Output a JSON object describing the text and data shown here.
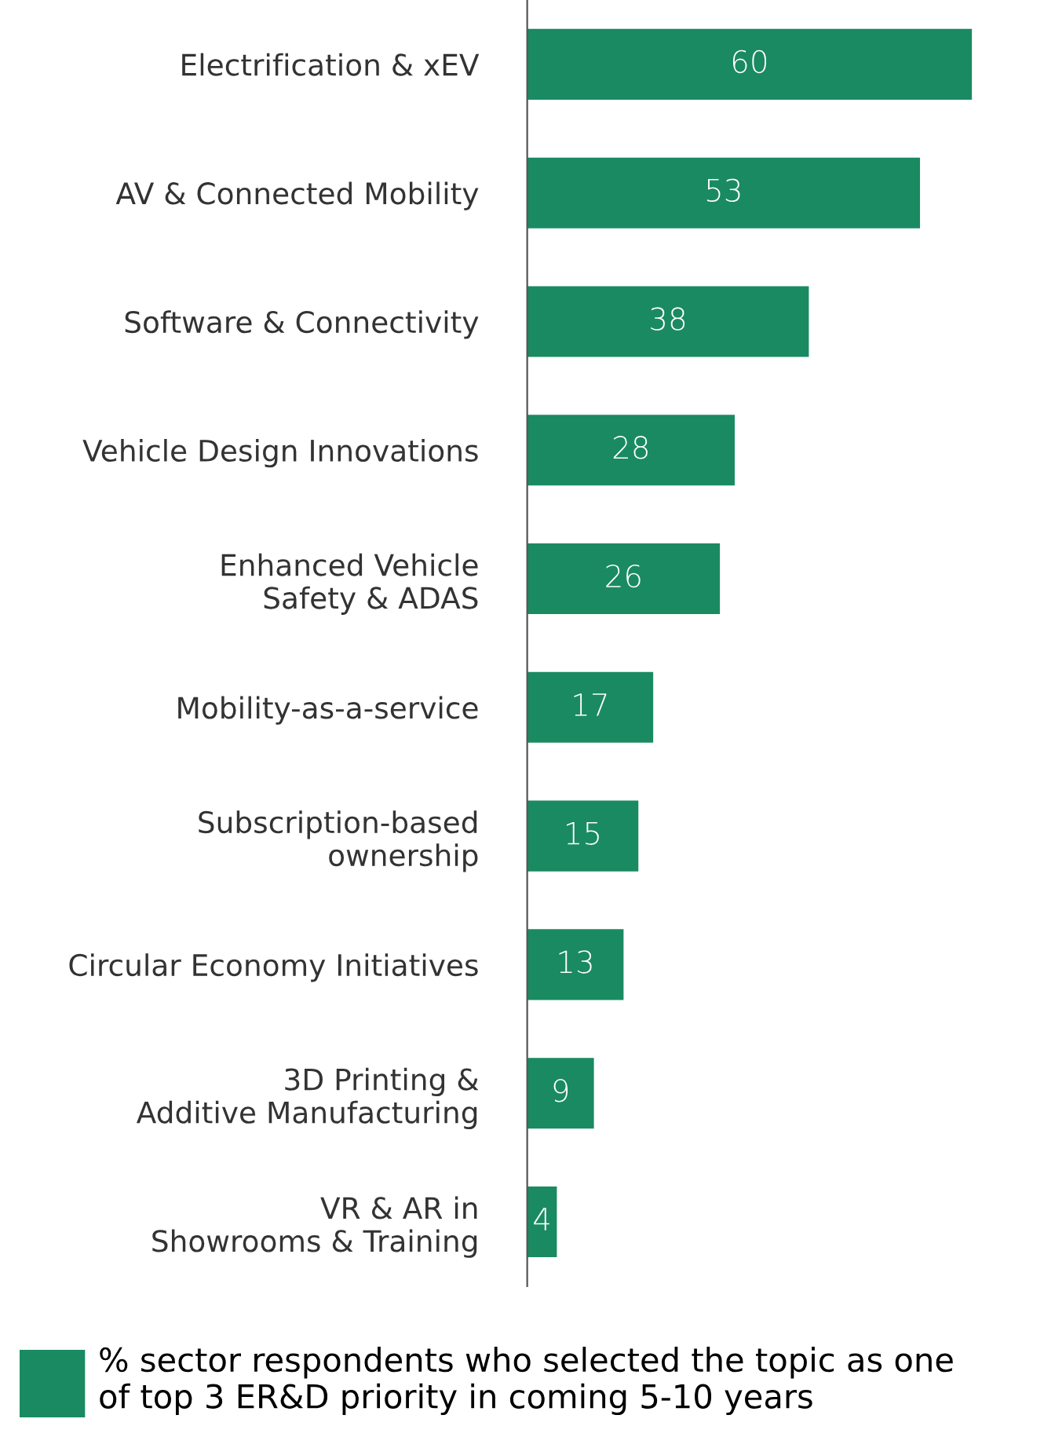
{
  "chart_data": {
    "type": "bar",
    "orientation": "horizontal",
    "categories": [
      "Electrification & xEV",
      "AV & Connected Mobility",
      "Software & Connectivity",
      "Vehicle Design Innovations",
      "Enhanced Vehicle\nSafety & ADAS",
      "Mobility-as-a-service",
      "Subscription-based\nownership",
      "Circular Economy Initiatives",
      "3D Printing &\nAdditive Manufacturing",
      "VR & AR in\nShowrooms & Training"
    ],
    "series": [
      {
        "name": "% sector respondents who selected the topic as one of top 3 ER&D priority in coming 5-10 years",
        "color": "#1a8a62",
        "values": [
          60,
          53,
          38,
          28,
          26,
          17,
          15,
          13,
          9,
          4
        ]
      }
    ],
    "data_labels": true,
    "legend": "bottom",
    "grid": false,
    "tick_labels": "y"
  }
}
